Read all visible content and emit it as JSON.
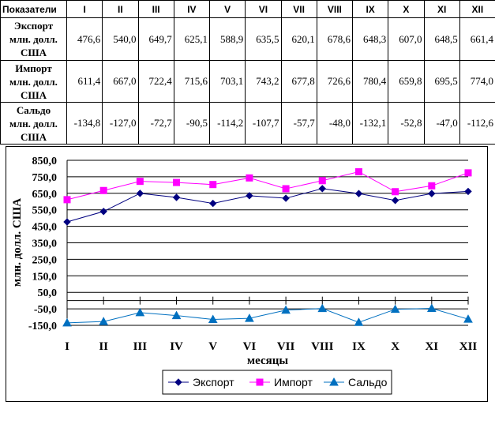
{
  "table": {
    "header_label": "Показатели",
    "months": [
      "I",
      "II",
      "III",
      "IV",
      "V",
      "VI",
      "VII",
      "VIII",
      "IX",
      "X",
      "XI",
      "XII"
    ],
    "rows": [
      {
        "label_lines": [
          "Экспорт",
          "млн. долл.",
          "США"
        ],
        "values": [
          "476,6",
          "540,0",
          "649,7",
          "625,1",
          "588,9",
          "635,5",
          "620,1",
          "678,6",
          "648,3",
          "607,0",
          "648,5",
          "661,4"
        ]
      },
      {
        "label_lines": [
          "Импорт",
          "млн. долл.",
          "США"
        ],
        "values": [
          "611,4",
          "667,0",
          "722,4",
          "715,6",
          "703,1",
          "743,2",
          "677,8",
          "726,6",
          "780,4",
          "659,8",
          "695,5",
          "774,0"
        ]
      },
      {
        "label_lines": [
          "Сальдо",
          "млн. долл.",
          "США"
        ],
        "values": [
          "-134,8",
          "-127,0",
          "-72,7",
          "-90,5",
          "-114,2",
          "-107,7",
          "-57,7",
          "-48,0",
          "-132,1",
          "-52,8",
          "-47,0",
          "-112,6"
        ]
      }
    ]
  },
  "chart_data": {
    "type": "line",
    "categories": [
      "I",
      "II",
      "III",
      "IV",
      "V",
      "VI",
      "VII",
      "VIII",
      "IX",
      "X",
      "XI",
      "XII"
    ],
    "xlabel": "месяцы",
    "ylabel": "млн. долл. США",
    "ylim": [
      -150,
      850
    ],
    "yticks": [
      -150,
      -50,
      50,
      150,
      250,
      350,
      450,
      550,
      650,
      750,
      850
    ],
    "ytick_labels": [
      "-150,0",
      "-50,0",
      "50,0",
      "150,0",
      "250,0",
      "350,0",
      "450,0",
      "550,0",
      "650,0",
      "750,0",
      "850,0"
    ],
    "grid": true,
    "legend_position": "bottom",
    "series": [
      {
        "name": "Экспорт",
        "color": "#000080",
        "marker": "diamond",
        "values": [
          476.6,
          540.0,
          649.7,
          625.1,
          588.9,
          635.5,
          620.1,
          678.6,
          648.3,
          607.0,
          648.5,
          661.4
        ]
      },
      {
        "name": "Импорт",
        "color": "#ff00ff",
        "marker": "square",
        "values": [
          611.4,
          667.0,
          722.4,
          715.6,
          703.1,
          743.2,
          677.8,
          726.6,
          780.4,
          659.8,
          695.5,
          774.0
        ]
      },
      {
        "name": "Сальдо",
        "color": "#0070c0",
        "marker": "triangle",
        "values": [
          -134.8,
          -127.0,
          -72.7,
          -90.5,
          -114.2,
          -107.7,
          -57.7,
          -48.0,
          -132.1,
          -52.8,
          -47.0,
          -112.6
        ]
      }
    ]
  }
}
